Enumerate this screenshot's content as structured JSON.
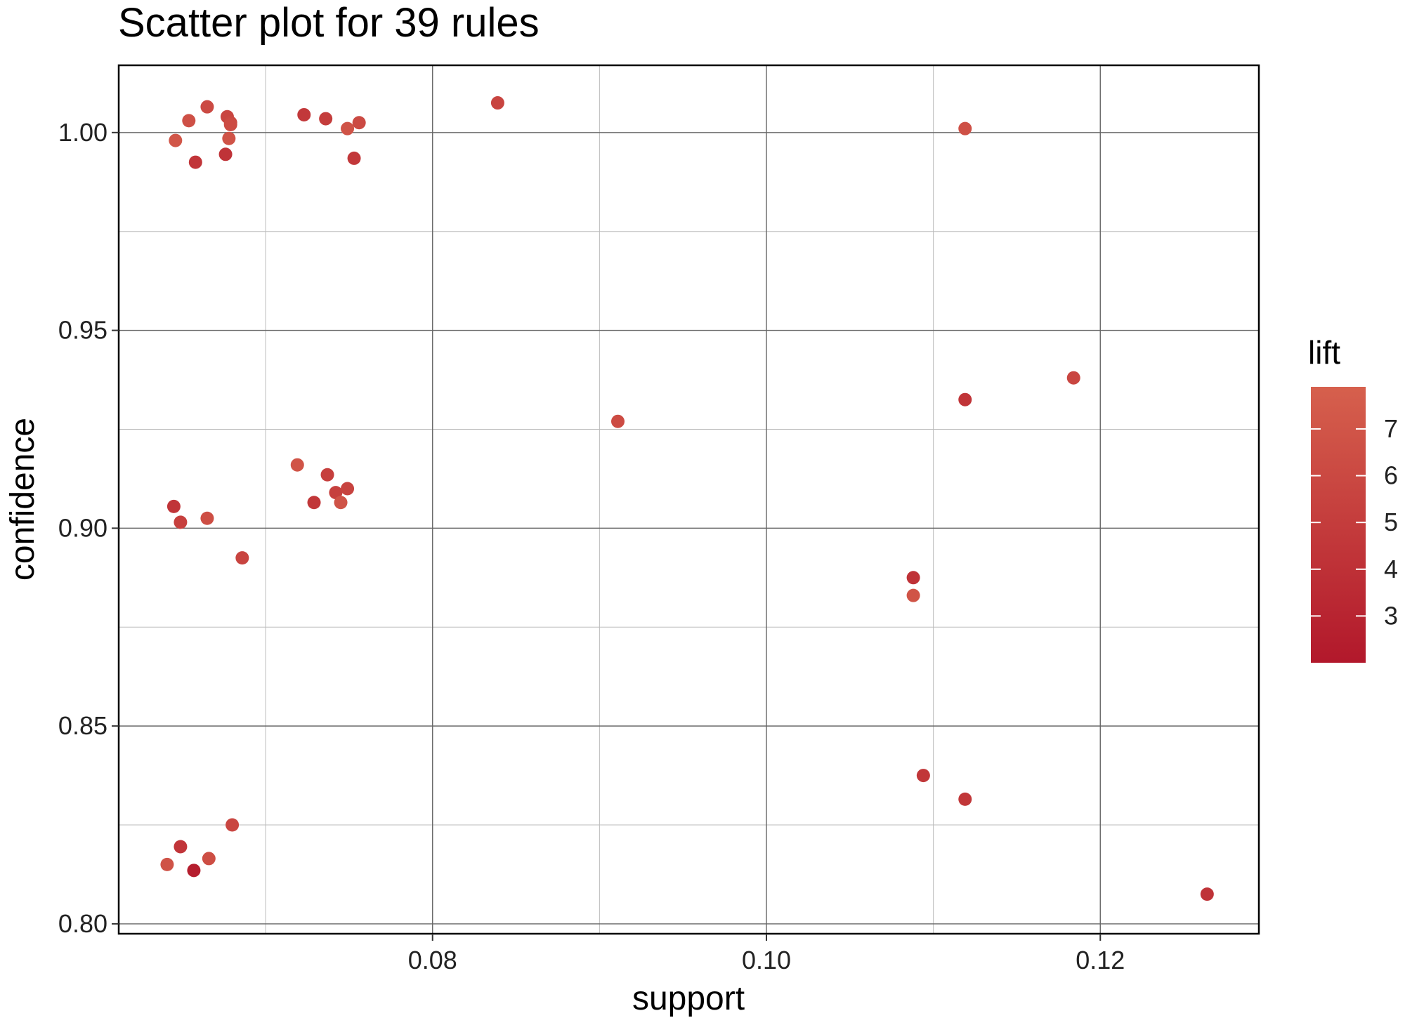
{
  "chart_data": {
    "type": "scatter",
    "title": "Scatter plot for 39 rules",
    "xlabel": "support",
    "ylabel": "confidence",
    "xlim": [
      0.0612,
      0.1295
    ],
    "ylim": [
      0.7975,
      1.017
    ],
    "x_ticks": [
      0.08,
      0.1,
      0.12
    ],
    "x_tick_labels": [
      "0.08",
      "0.10",
      "0.12"
    ],
    "x_minor_ticks": [
      0.07,
      0.09,
      0.11
    ],
    "y_ticks": [
      0.8,
      0.85,
      0.9,
      0.95,
      1.0
    ],
    "y_tick_labels": [
      "0.80",
      "0.85",
      "0.90",
      "0.95",
      "1.00"
    ],
    "y_minor_ticks": [
      0.825,
      0.875,
      0.925,
      0.975
    ],
    "grid": true,
    "legend": {
      "title": "lift",
      "placement": "right",
      "range": [
        2.0,
        7.9
      ],
      "ticks": [
        3,
        4,
        5,
        6,
        7
      ],
      "tick_labels": [
        "3",
        "4",
        "5",
        "6",
        "7"
      ],
      "color_low": "#b2182b",
      "color_high": "#d6604d"
    },
    "points": [
      {
        "x": 0.0646,
        "y": 0.998,
        "lift": 7.1
      },
      {
        "x": 0.0654,
        "y": 1.003,
        "lift": 6.6
      },
      {
        "x": 0.0658,
        "y": 0.9925,
        "lift": 4.4
      },
      {
        "x": 0.0665,
        "y": 1.0065,
        "lift": 6.1
      },
      {
        "x": 0.0676,
        "y": 0.9945,
        "lift": 4.2
      },
      {
        "x": 0.0677,
        "y": 1.004,
        "lift": 5.7
      },
      {
        "x": 0.0679,
        "y": 1.0025,
        "lift": 5.9
      },
      {
        "x": 0.0679,
        "y": 1.002,
        "lift": 6.2
      },
      {
        "x": 0.0678,
        "y": 0.9985,
        "lift": 6.8
      },
      {
        "x": 0.0723,
        "y": 1.0045,
        "lift": 4.6
      },
      {
        "x": 0.0736,
        "y": 1.0035,
        "lift": 5.0
      },
      {
        "x": 0.0749,
        "y": 1.001,
        "lift": 6.8
      },
      {
        "x": 0.0753,
        "y": 0.9935,
        "lift": 4.6
      },
      {
        "x": 0.0756,
        "y": 1.0025,
        "lift": 6.1
      },
      {
        "x": 0.0839,
        "y": 1.0075,
        "lift": 5.6
      },
      {
        "x": 0.1119,
        "y": 1.001,
        "lift": 6.6
      },
      {
        "x": 0.0645,
        "y": 0.9055,
        "lift": 4.3
      },
      {
        "x": 0.0649,
        "y": 0.9015,
        "lift": 5.3
      },
      {
        "x": 0.0665,
        "y": 0.9025,
        "lift": 6.4
      },
      {
        "x": 0.0686,
        "y": 0.8925,
        "lift": 5.6
      },
      {
        "x": 0.0719,
        "y": 0.916,
        "lift": 6.9
      },
      {
        "x": 0.0729,
        "y": 0.9065,
        "lift": 4.5
      },
      {
        "x": 0.0737,
        "y": 0.9135,
        "lift": 5.2
      },
      {
        "x": 0.0742,
        "y": 0.909,
        "lift": 5.3
      },
      {
        "x": 0.0745,
        "y": 0.9065,
        "lift": 6.8
      },
      {
        "x": 0.0749,
        "y": 0.91,
        "lift": 5.5
      },
      {
        "x": 0.0911,
        "y": 0.927,
        "lift": 6.2
      },
      {
        "x": 0.1119,
        "y": 0.9325,
        "lift": 4.3
      },
      {
        "x": 0.1184,
        "y": 0.938,
        "lift": 5.8
      },
      {
        "x": 0.1088,
        "y": 0.8875,
        "lift": 4.1
      },
      {
        "x": 0.1088,
        "y": 0.883,
        "lift": 6.9
      },
      {
        "x": 0.0641,
        "y": 0.815,
        "lift": 6.8
      },
      {
        "x": 0.0649,
        "y": 0.8195,
        "lift": 4.4
      },
      {
        "x": 0.0657,
        "y": 0.8135,
        "lift": 2.5
      },
      {
        "x": 0.0666,
        "y": 0.8165,
        "lift": 6.4
      },
      {
        "x": 0.068,
        "y": 0.825,
        "lift": 5.8
      },
      {
        "x": 0.1094,
        "y": 0.8375,
        "lift": 4.5
      },
      {
        "x": 0.1119,
        "y": 0.8315,
        "lift": 4.5
      },
      {
        "x": 0.1264,
        "y": 0.8075,
        "lift": 4.2
      }
    ]
  }
}
